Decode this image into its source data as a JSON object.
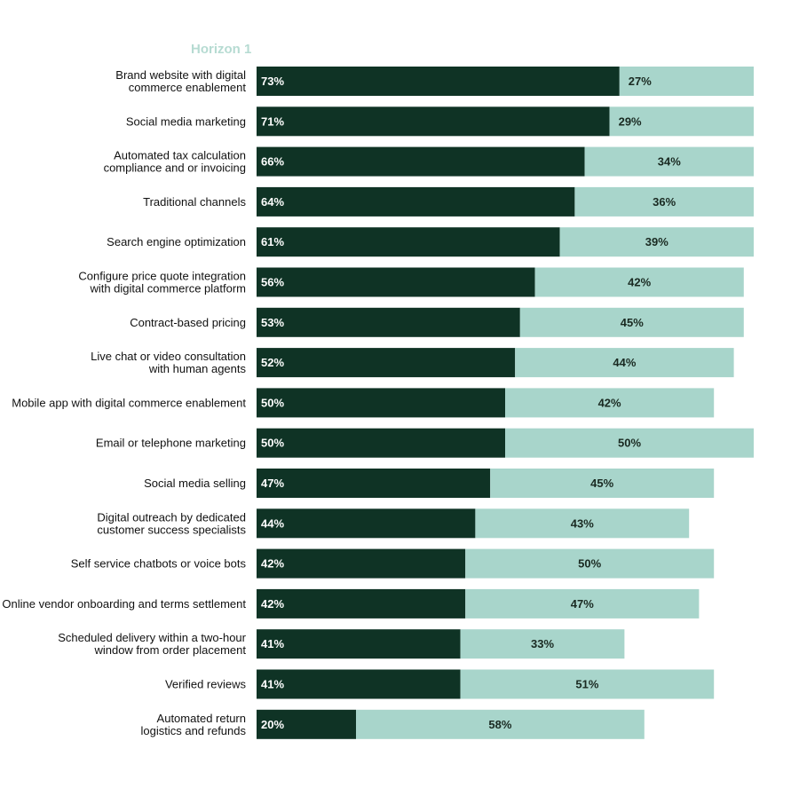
{
  "colors": {
    "horizon1": "#0f3325",
    "other": "#a8d5cb",
    "legend_text": "#b6dbd2",
    "label_light": "#ffffff",
    "label_dark": "#1a2a22"
  },
  "chart_data": {
    "type": "bar",
    "orientation": "horizontal",
    "stacked": true,
    "legend_title": "Horizon 1",
    "categories": [
      "Brand website with digital commerce enablement",
      "Social media marketing",
      "Automated tax calculation compliance and or invoicing",
      "Traditional channels",
      "Search engine optimization",
      "Configure price quote integration with digital commerce platform",
      "Contract-based pricing",
      "Live chat or video consultation with human agents",
      "Mobile app with digital commerce enablement",
      "Email or telephone marketing",
      "Social media selling",
      "Digital outreach by dedicated customer success specialists",
      "Self service chatbots or voice bots",
      "Online vendor onboarding and terms settlement",
      "Scheduled delivery within a two-hour window from order placement",
      "Verified reviews",
      "Automated return logistics and refunds"
    ],
    "category_lines": [
      [
        "Brand website with digital",
        "commerce enablement"
      ],
      [
        "Social media marketing"
      ],
      [
        "Automated tax calculation",
        "compliance and or invoicing"
      ],
      [
        "Traditional channels"
      ],
      [
        "Search engine optimization"
      ],
      [
        "Configure price quote integration",
        "with digital commerce platform"
      ],
      [
        "Contract-based pricing"
      ],
      [
        "Live chat or video consultation",
        "with human agents"
      ],
      [
        "Mobile app with digital commerce enablement"
      ],
      [
        "Email or telephone marketing"
      ],
      [
        "Social media selling"
      ],
      [
        "Digital outreach by dedicated",
        "customer success specialists"
      ],
      [
        "Self service chatbots or voice bots"
      ],
      [
        "Online vendor onboarding and terms settlement"
      ],
      [
        "Scheduled delivery within a two-hour",
        "window from order placement"
      ],
      [
        "Verified reviews"
      ],
      [
        "Automated return",
        "logistics and refunds"
      ]
    ],
    "series": [
      {
        "name": "Horizon 1",
        "values": [
          73,
          71,
          66,
          64,
          61,
          56,
          53,
          52,
          50,
          50,
          47,
          44,
          42,
          42,
          41,
          41,
          20
        ]
      },
      {
        "values": [
          27,
          29,
          34,
          36,
          39,
          42,
          45,
          44,
          42,
          50,
          45,
          43,
          50,
          47,
          33,
          51,
          58
        ]
      }
    ],
    "value_labels": [
      [
        "73%",
        "71%",
        "66%",
        "64%",
        "61%",
        "56%",
        "53%",
        "52%",
        "50%",
        "50%",
        "47%",
        "44%",
        "42%",
        "42%",
        "41%",
        "41%",
        "20%"
      ],
      [
        "27%",
        "29%",
        "34%",
        "36%",
        "39%",
        "42%",
        "45%",
        "44%",
        "42%",
        "50%",
        "45%",
        "43%",
        "50%",
        "47%",
        "33%",
        "51%",
        "58%"
      ]
    ],
    "xlim": [
      0,
      100
    ],
    "grid": false,
    "axes_visible": false,
    "legend_placement": "top-left"
  }
}
